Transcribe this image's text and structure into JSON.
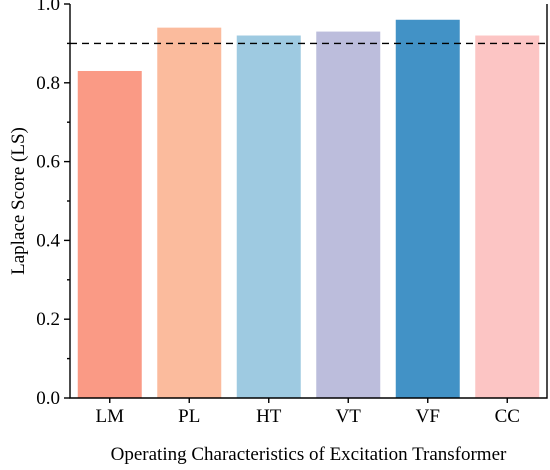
{
  "chart_data": {
    "type": "bar",
    "title": "",
    "xlabel": "Operating Characteristics of Excitation Transformer",
    "ylabel": "Laplace Score (LS)",
    "categories": [
      "LM",
      "PL",
      "HT",
      "VT",
      "VF",
      "CC"
    ],
    "values": [
      0.83,
      0.94,
      0.92,
      0.93,
      0.96,
      0.92
    ],
    "colors": [
      "#fa9a85",
      "#fbbb9d",
      "#9ecae1",
      "#bcbddc",
      "#4292c6",
      "#fcc5c4"
    ],
    "ylim": [
      0,
      1.0
    ],
    "yticks": [
      "0.0",
      "0.2",
      "0.4",
      "0.6",
      "0.8",
      "1.0"
    ],
    "reference_line": {
      "value": 0.9,
      "style": "dashed"
    },
    "grid": false,
    "legend": "none"
  }
}
